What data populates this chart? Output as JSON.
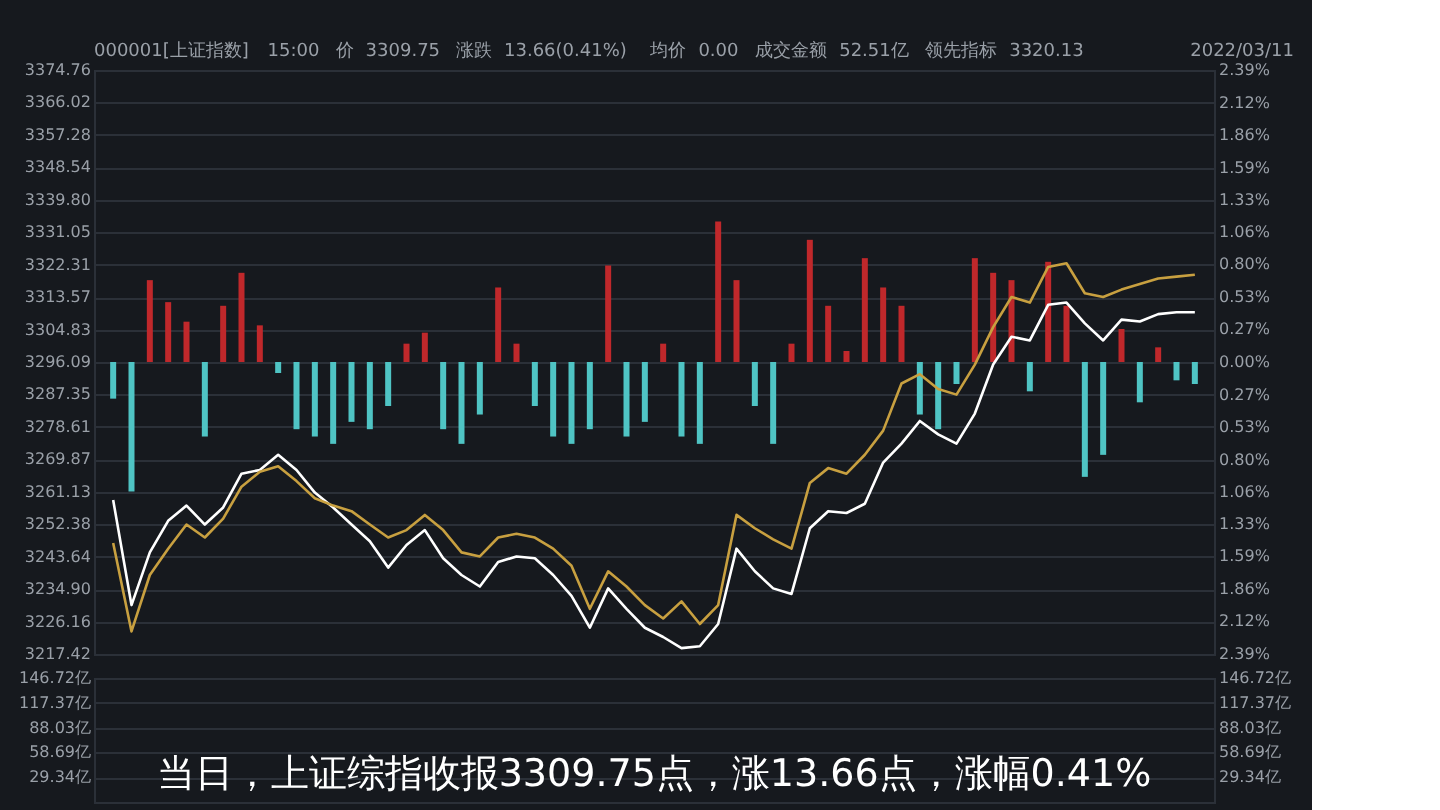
{
  "chart_data": [
    {
      "type": "line",
      "annotations": [
        "000001[上证指数]",
        "15:00",
        "价",
        "3309.75",
        "涨跌",
        "13.66(0.41%)",
        "均价",
        "0.00",
        "成交金额",
        "52.51亿",
        "领先指标",
        "3320.13",
        "2022/03/11"
      ],
      "categories": [
        null,
        null,
        null,
        null,
        null,
        null,
        null,
        null,
        null,
        null,
        null,
        null,
        null,
        null,
        null,
        null,
        null,
        null,
        null,
        null,
        null,
        null,
        null,
        null,
        null,
        null,
        null,
        null,
        null,
        null,
        null,
        null,
        null,
        null,
        null,
        null,
        null,
        null,
        null,
        null,
        null,
        null,
        null,
        null,
        null,
        null,
        null,
        null,
        null,
        null,
        null,
        null,
        null,
        null,
        null,
        null,
        null,
        null,
        null,
        null
      ],
      "series": [
        {
          "type": "bar",
          "axis": "y2",
          "values": [
            -0.3,
            -1.06,
            0.67,
            0.49,
            0.33,
            -0.61,
            0.46,
            0.73,
            0.3,
            -0.09,
            -0.55,
            -0.61,
            -0.67,
            -0.49,
            -0.55,
            -0.36,
            0.15,
            0.24,
            -0.55,
            -0.67,
            -0.43,
            0.61,
            0.15,
            -0.36,
            -0.61,
            -0.67,
            -0.55,
            0.79,
            -0.61,
            -0.49,
            0.15,
            -0.61,
            -0.67,
            1.15,
            0.67,
            -0.36,
            -0.67,
            0.15,
            1.0,
            0.46,
            0.09,
            0.85,
            0.61,
            0.46,
            -0.43,
            -0.55,
            -0.18,
            0.85,
            0.73,
            0.67,
            -0.24,
            0.82,
            0.46,
            -0.94,
            -0.76,
            0.27,
            -0.33,
            0.12,
            -0.15,
            -0.18
          ],
          "colors": [
            "#4fc4c4",
            "#4fc4c4",
            "#c0282b",
            "#c0282b",
            "#c0282b",
            "#4fc4c4",
            "#c0282b",
            "#c0282b",
            "#c0282b",
            "#4fc4c4",
            "#4fc4c4",
            "#4fc4c4",
            "#4fc4c4",
            "#4fc4c4",
            "#4fc4c4",
            "#4fc4c4",
            "#c0282b",
            "#c0282b",
            "#4fc4c4",
            "#4fc4c4",
            "#4fc4c4",
            "#c0282b",
            "#c0282b",
            "#4fc4c4",
            "#4fc4c4",
            "#4fc4c4",
            "#4fc4c4",
            "#c0282b",
            "#4fc4c4",
            "#4fc4c4",
            "#c0282b",
            "#4fc4c4",
            "#4fc4c4",
            "#c0282b",
            "#c0282b",
            "#4fc4c4",
            "#4fc4c4",
            "#c0282b",
            "#c0282b",
            "#c0282b",
            "#c0282b",
            "#c0282b",
            "#c0282b",
            "#c0282b",
            "#4fc4c4",
            "#4fc4c4",
            "#4fc4c4",
            "#c0282b",
            "#c0282b",
            "#c0282b",
            "#4fc4c4",
            "#c0282b",
            "#c0282b",
            "#4fc4c4",
            "#4fc4c4",
            "#c0282b",
            "#4fc4c4",
            "#c0282b",
            "#4fc4c4",
            "#4fc4c4"
          ]
        },
        {
          "color": "#ffffff",
          "values": [
            3258.9,
            3230.6,
            3244.8,
            3253.3,
            3257.4,
            3252.3,
            3256.9,
            3266.0,
            3267.0,
            3271.1,
            3267.0,
            3260.9,
            3256.9,
            3252.3,
            3247.8,
            3240.7,
            3246.8,
            3250.8,
            3243.2,
            3238.7,
            3235.6,
            3242.2,
            3243.7,
            3243.2,
            3238.7,
            3233.1,
            3224.5,
            3235.1,
            3229.6,
            3224.5,
            3222.0,
            3219.0,
            3219.5,
            3225.5,
            3245.8,
            3239.7,
            3235.1,
            3233.6,
            3251.3,
            3255.9,
            3255.4,
            3257.9,
            3269.0,
            3274.1,
            3280.2,
            3276.6,
            3274.1,
            3282.2,
            3295.4,
            3302.9,
            3301.9,
            3311.5,
            3312.1,
            3306.5,
            3301.9,
            3307.5,
            3307.0,
            3309.0,
            3309.5,
            3309.5
          ]
        },
        {
          "color": "#c8a040",
          "values": [
            3247.3,
            3223.5,
            3238.7,
            3245.8,
            3252.3,
            3248.8,
            3253.9,
            3262.5,
            3266.5,
            3268.0,
            3264.0,
            3259.4,
            3257.4,
            3255.9,
            3252.3,
            3248.8,
            3250.8,
            3254.9,
            3250.8,
            3244.8,
            3243.7,
            3248.8,
            3249.8,
            3248.8,
            3245.8,
            3241.2,
            3229.6,
            3239.7,
            3235.6,
            3230.6,
            3227.0,
            3231.6,
            3225.5,
            3230.6,
            3254.9,
            3251.3,
            3248.3,
            3245.8,
            3263.5,
            3267.5,
            3266.0,
            3271.1,
            3277.6,
            3290.3,
            3292.8,
            3288.8,
            3287.3,
            3295.4,
            3305.5,
            3313.6,
            3312.1,
            3321.7,
            3322.7,
            3314.6,
            3313.6,
            3315.6,
            3317.1,
            3318.6,
            3319.1,
            3319.6
          ]
        }
      ],
      "ylim": [
        3217.42,
        3374.76
      ],
      "yticks": [
        3217.42,
        3226.16,
        {
          "value": 3234.9,
          "label": "3234.90"
        },
        3243.64,
        3252.38,
        3261.13,
        3269.87,
        3278.61,
        3287.35,
        3296.09,
        3304.83,
        3313.57,
        3322.31,
        3331.05,
        {
          "value": 3339.8,
          "label": "3339.80"
        },
        3348.54,
        3357.28,
        3366.02,
        3374.76
      ],
      "y2lim": [
        -2.39,
        2.39
      ],
      "y2ticks": [
        {
          "value": -2.39,
          "label": "2.39%"
        },
        {
          "value": -2.12,
          "label": "2.12%"
        },
        {
          "value": -1.86,
          "label": "1.86%"
        },
        {
          "value": -1.59,
          "label": "1.59%"
        },
        {
          "value": -1.33,
          "label": "1.33%"
        },
        {
          "value": -1.06,
          "label": "1.06%"
        },
        {
          "value": -0.8,
          "label": "0.80%"
        },
        {
          "value": -0.53,
          "label": "0.53%"
        },
        {
          "value": -0.27,
          "label": "0.27%"
        },
        {
          "value": 0,
          "label": "0.00%"
        },
        {
          "value": 0.27,
          "label": "0.27%"
        },
        {
          "value": 0.53,
          "label": "0.53%"
        },
        {
          "value": 0.8,
          "label": "0.80%"
        },
        {
          "value": 1.06,
          "label": "1.06%"
        },
        {
          "value": 1.33,
          "label": "1.33%"
        },
        {
          "value": 1.59,
          "label": "1.59%"
        },
        {
          "value": 1.86,
          "label": "1.86%"
        },
        {
          "value": 2.12,
          "label": "2.12%"
        },
        {
          "value": 2.39,
          "label": "2.39%"
        }
      ],
      "grid": "y"
    },
    {
      "type": "bar",
      "annotations": [
        "当日，上证综指收报3309.75点，涨13.66点，涨幅0.41%"
      ],
      "categories": [
        null,
        null,
        null,
        null,
        null,
        null,
        null,
        null,
        null,
        null,
        null,
        null,
        null,
        null,
        null,
        null,
        null,
        null,
        null,
        null,
        null,
        null,
        null,
        null,
        null,
        null,
        null,
        null,
        null,
        null,
        null,
        null,
        null,
        null,
        null,
        null,
        null,
        null,
        null,
        null,
        null,
        null,
        null,
        null,
        null,
        null,
        null,
        null,
        null,
        null,
        null,
        null,
        null,
        null,
        null,
        null,
        null,
        null,
        null,
        null
      ],
      "values": [
        null,
        null,
        null,
        null,
        null,
        null,
        null,
        null,
        null,
        null,
        null,
        null,
        null,
        null,
        null,
        null,
        null,
        null,
        null,
        null,
        null,
        null,
        null,
        null,
        null,
        null,
        null,
        null,
        null,
        null,
        null,
        null,
        null,
        null,
        null,
        null,
        null,
        null,
        null,
        null,
        null,
        null,
        null,
        null,
        null,
        null,
        null,
        null,
        null,
        null,
        null,
        null,
        null,
        null,
        null,
        null,
        null,
        null,
        null,
        null
      ],
      "ylim": [
        0,
        146.72
      ],
      "yticks": [
        {
          "value": 29.34,
          "label": "29.34亿"
        },
        {
          "value": 58.69,
          "label": "58.69亿"
        },
        {
          "value": 88.03,
          "label": "88.03亿"
        },
        {
          "value": 117.37,
          "label": "117.37亿"
        },
        {
          "value": 146.72,
          "label": "146.72亿"
        }
      ],
      "y2lim": [
        0,
        146.72
      ],
      "y2ticks": [
        {
          "value": 29.34,
          "label": "29.34亿"
        },
        {
          "value": 58.69,
          "label": "58.69亿"
        },
        {
          "value": 88.03,
          "label": "88.03亿"
        },
        {
          "value": 117.37,
          "label": "117.37亿"
        },
        {
          "value": 146.72,
          "label": "146.72亿"
        }
      ],
      "grid": "y"
    }
  ]
}
